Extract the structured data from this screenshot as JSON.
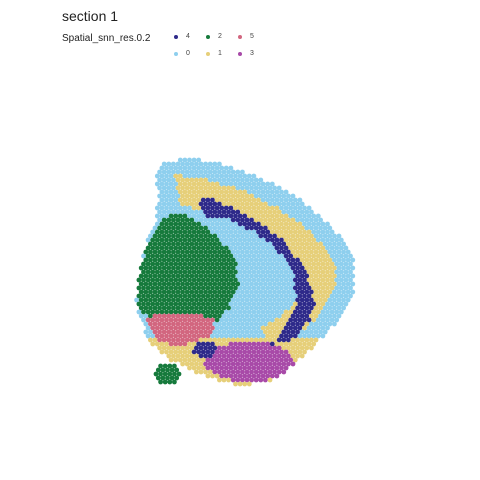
{
  "chart_data": {
    "type": "scatter",
    "title": "section 1",
    "legend_title": "Spatial_snn_res.0.2",
    "legend_placement": "top",
    "grid": false,
    "series": [
      {
        "name": "4",
        "color": "#2e2a8a"
      },
      {
        "name": "2",
        "color": "#167a3c"
      },
      {
        "name": "5",
        "color": "#d2667f"
      },
      {
        "name": "0",
        "color": "#8ecfee"
      },
      {
        "name": "1",
        "color": "#e6cf79"
      },
      {
        "name": "3",
        "color": "#a84aa8"
      }
    ]
  }
}
